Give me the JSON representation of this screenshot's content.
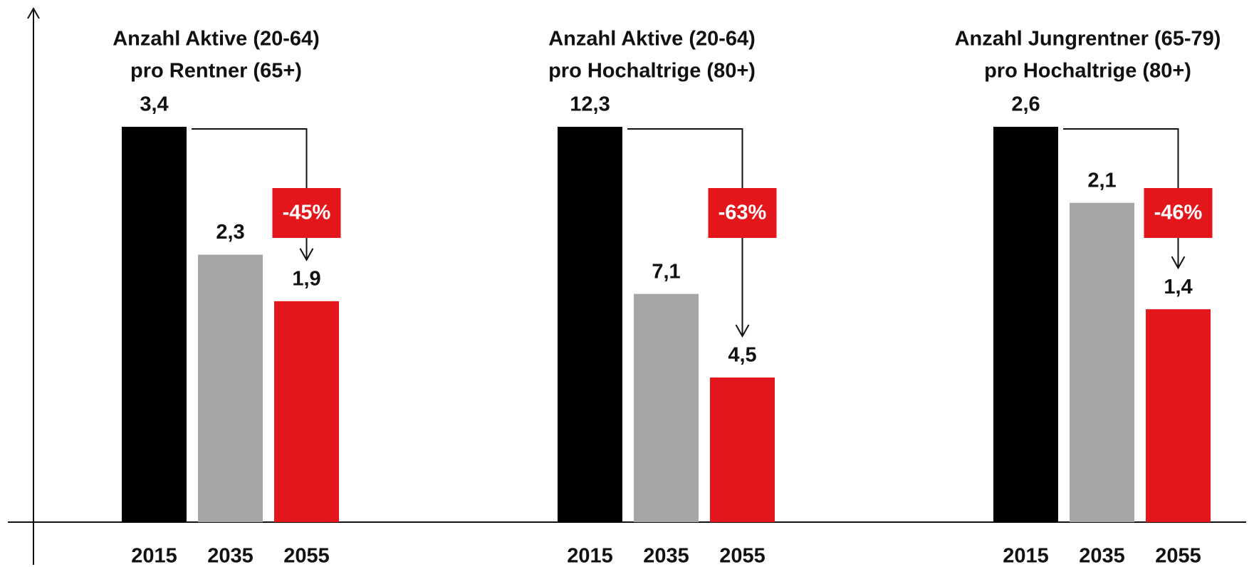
{
  "chart_data": [
    {
      "type": "bar",
      "title": [
        "Anzahl Aktive (20-64)",
        "pro Rentner (65+)"
      ],
      "categories": [
        "2015",
        "2035",
        "2055"
      ],
      "values": [
        3.4,
        2.3,
        1.9
      ],
      "value_labels": [
        "3,4",
        "2,3",
        "1,9"
      ],
      "colors": [
        "#000000",
        "#a6a6a6",
        "#e3161b"
      ],
      "annotation": "-45%"
    },
    {
      "type": "bar",
      "title": [
        "Anzahl Aktive (20-64)",
        "pro Hochaltrige (80+)"
      ],
      "categories": [
        "2015",
        "2035",
        "2055"
      ],
      "values": [
        12.3,
        7.1,
        4.5
      ],
      "value_labels": [
        "12,3",
        "7,1",
        "4,5"
      ],
      "colors": [
        "#000000",
        "#a6a6a6",
        "#e3161b"
      ],
      "annotation": "-63%"
    },
    {
      "type": "bar",
      "title": [
        "Anzahl Jungrentner (65-79)",
        "pro Hochaltrige (80+)"
      ],
      "categories": [
        "2015",
        "2035",
        "2055"
      ],
      "values": [
        2.6,
        2.1,
        1.4
      ],
      "value_labels": [
        "2,6",
        "2,1",
        "1,4"
      ],
      "colors": [
        "#000000",
        "#a6a6a6",
        "#e3161b"
      ],
      "annotation": "-46%"
    }
  ]
}
